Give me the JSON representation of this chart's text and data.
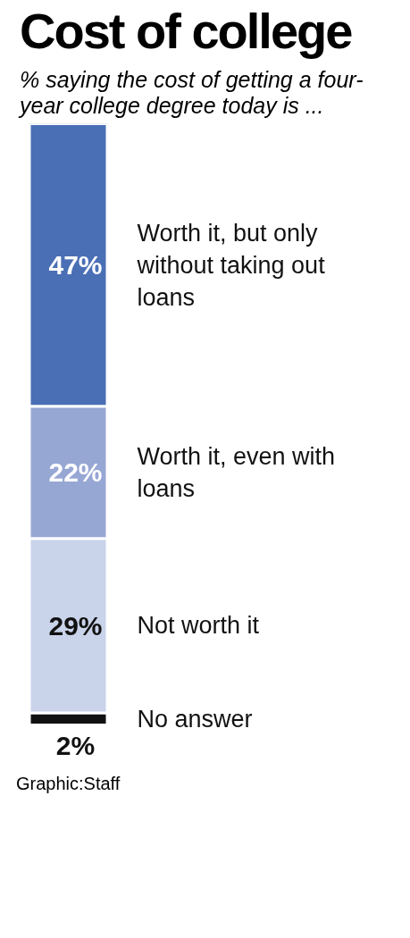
{
  "chart_data": {
    "type": "bar",
    "title": "Cost of college",
    "subtitle": "% saying the cost of getting a four-year college degree today is ...",
    "categories": [
      null
    ],
    "stacked": true,
    "legend": false,
    "series": [
      {
        "name": "No answer",
        "color": "#111111",
        "values": [
          2
        ],
        "value_labels": [
          "2%"
        ]
      },
      {
        "name": "Not worth it",
        "color": "#c9d3ea",
        "values": [
          29
        ],
        "value_labels": [
          "29%"
        ]
      },
      {
        "name": "Worth it, even with loans",
        "color": "#97a7d4",
        "values": [
          22
        ],
        "value_labels": [
          "22%"
        ]
      },
      {
        "name": "Worth it, but only without taking out loans",
        "color": "#4a6fb5",
        "values": [
          47
        ],
        "value_labels": [
          "47%"
        ]
      }
    ],
    "annotations": [
      "Graphic:Staff"
    ]
  }
}
